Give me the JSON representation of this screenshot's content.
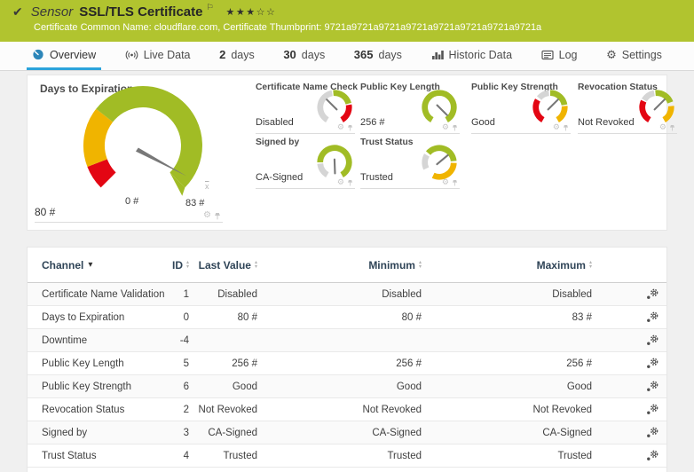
{
  "header": {
    "sensor_label": "Sensor",
    "title": "SSL/TLS Certificate",
    "stars_filled": "★★★",
    "stars_empty": "☆☆",
    "subtitle": "Certificate Common Name: cloudflare.com, Certificate Thumbprint: 9721a9721a9721a9721a9721a9721a9721a9721a"
  },
  "tabs": {
    "overview": "Overview",
    "live_data": "Live Data",
    "d2_num": "2",
    "d2_label": "days",
    "d30_num": "30",
    "d30_label": "days",
    "d365_num": "365",
    "d365_label": "days",
    "historic": "Historic Data",
    "log": "Log",
    "settings": "Settings"
  },
  "gauges": {
    "main": {
      "title": "Days to Expiration",
      "value": "80 #",
      "scale_min": "0 #",
      "scale_max": "83 #",
      "peak_marker": "x"
    },
    "small": [
      {
        "title": "Certificate Name Check",
        "value": "Disabled"
      },
      {
        "title": "Public Key Length",
        "value": "256 #"
      },
      {
        "title": "Public Key Strength",
        "value": "Good"
      },
      {
        "title": "Revocation Status",
        "value": "Not Revoked"
      },
      {
        "title": "Signed by",
        "value": "CA-Signed"
      },
      {
        "title": "Trust Status",
        "value": "Trusted"
      }
    ]
  },
  "table": {
    "headers": {
      "channel": "Channel",
      "id": "ID",
      "last": "Last Value",
      "min": "Minimum",
      "max": "Maximum"
    },
    "rows": [
      {
        "channel": "Certificate Name Validation",
        "id": "1",
        "last": "Disabled",
        "min": "Disabled",
        "max": "Disabled"
      },
      {
        "channel": "Days to Expiration",
        "id": "0",
        "last": "80 #",
        "min": "80 #",
        "max": "83 #"
      },
      {
        "channel": "Downtime",
        "id": "-4",
        "last": "",
        "min": "",
        "max": ""
      },
      {
        "channel": "Public Key Length",
        "id": "5",
        "last": "256 #",
        "min": "256 #",
        "max": "256 #"
      },
      {
        "channel": "Public Key Strength",
        "id": "6",
        "last": "Good",
        "min": "Good",
        "max": "Good"
      },
      {
        "channel": "Revocation Status",
        "id": "2",
        "last": "Not Revoked",
        "min": "Not Revoked",
        "max": "Not Revoked"
      },
      {
        "channel": "Signed by",
        "id": "3",
        "last": "CA-Signed",
        "min": "CA-Signed",
        "max": "CA-Signed"
      },
      {
        "channel": "Trust Status",
        "id": "4",
        "last": "Trusted",
        "min": "Trusted",
        "max": "Trusted"
      }
    ]
  },
  "colors": {
    "banner": "#b1c42f",
    "gauge_green": "#a1bc25",
    "gauge_yellow": "#f0b400",
    "gauge_red": "#e30613",
    "accent_blue": "#2ba3db"
  }
}
